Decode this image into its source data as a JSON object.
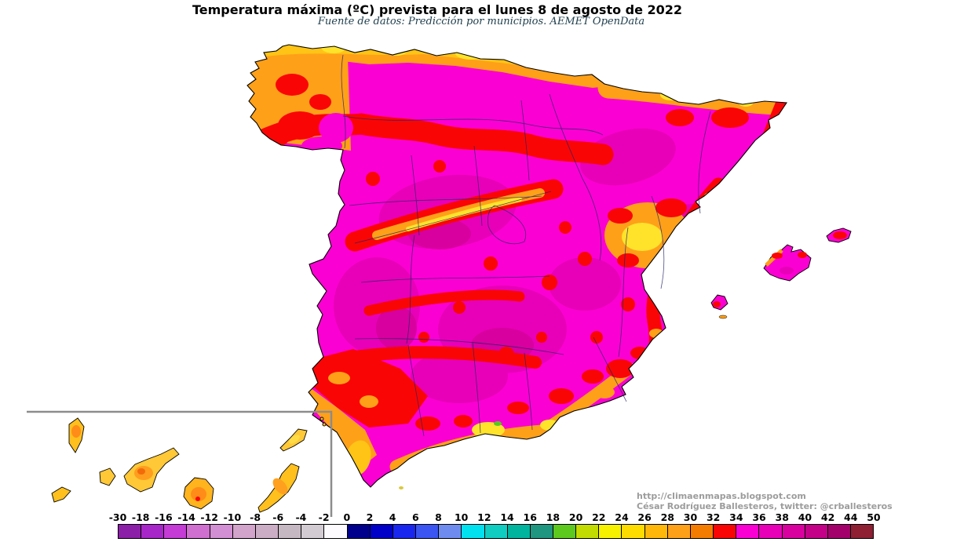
{
  "title": "Temperatura máxima (ºC) prevista para el lunes 8 de agosto de 2022",
  "subtitle": "Fuente de datos: Predicción por municipios. AEMET OpenData",
  "attribution": {
    "line1": "http://climaenmapas.blogspot.com",
    "line2": "César Rodríguez Ballesteros, twitter: @crballesteros"
  },
  "legend": {
    "unit": "ºC",
    "tick_labels": [
      "-30",
      "-18",
      "-16",
      "-14",
      "-12",
      "-10",
      "-8",
      "-6",
      "-4",
      "-2",
      "0",
      "2",
      "4",
      "6",
      "8",
      "10",
      "12",
      "14",
      "16",
      "18",
      "20",
      "22",
      "24",
      "26",
      "28",
      "30",
      "32",
      "34",
      "36",
      "38",
      "40",
      "42",
      "44",
      "50"
    ],
    "colors": [
      "#8C1FA8",
      "#A726C9",
      "#C43BD6",
      "#CF6FCF",
      "#D38FD3",
      "#D2A3CB",
      "#CBAEC5",
      "#C6B8C2",
      "#D2CCD2",
      "#FDFBFD",
      "#00008C",
      "#0000C8",
      "#1926EE",
      "#3A55F2",
      "#6E8CF0",
      "#00E1F0",
      "#0FCDC0",
      "#00B49E",
      "#1E9680",
      "#5DC81E",
      "#C3DC00",
      "#F6F200",
      "#FFDC00",
      "#FFB70A",
      "#FFA019",
      "#F47C00",
      "#FA0505",
      "#FB00D2",
      "#E800B8",
      "#D8009E",
      "#C30087",
      "#A3006B",
      "#8F1F33"
    ]
  },
  "map_palette": {
    "hot_magenta_34_36": "#FB00D2",
    "deep_magenta_36_38": "#E800B8",
    "deeper_magenta_38_40": "#D8009E",
    "red_32_34": "#FA0505",
    "orange_28_30": "#FFA019",
    "amber_26_28": "#FFC415",
    "yellow_24_26": "#FFE32B",
    "green_18_20": "#55C81E",
    "boundary_line": "#23236B",
    "coastline": "#000000",
    "inset_border": "#8C8C8C"
  }
}
